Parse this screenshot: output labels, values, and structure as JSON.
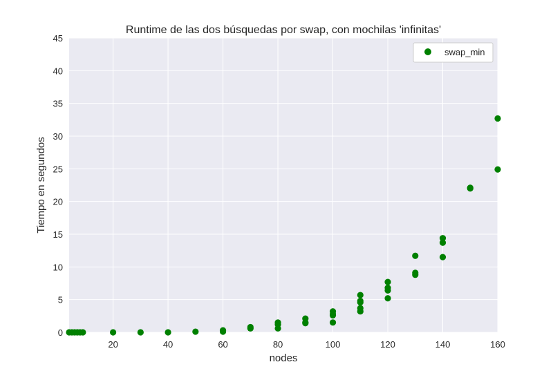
{
  "colors": {
    "plot_background": "#eaeaf2",
    "grid": "#ffffff",
    "marker": "#008000",
    "legend_background": "#ffffff"
  },
  "chart_data": {
    "type": "scatter",
    "title": "Runtime de las dos búsquedas por swap, con mochilas 'infinitas'",
    "xlabel": "nodes",
    "ylabel": "Tiempo en segundos",
    "xlim": [
      4,
      160
    ],
    "ylim": [
      0,
      45
    ],
    "xticks": [
      20,
      40,
      60,
      80,
      100,
      120,
      140,
      160
    ],
    "yticks": [
      0,
      5,
      10,
      15,
      20,
      25,
      30,
      35,
      40,
      45
    ],
    "grid": true,
    "legend_position": "top-right",
    "series": [
      {
        "name": "swap_min",
        "marker": "circle",
        "color": "#008000",
        "points": [
          [
            4,
            0.0
          ],
          [
            5,
            0.0
          ],
          [
            6,
            0.0
          ],
          [
            7,
            0.0
          ],
          [
            8,
            0.0
          ],
          [
            9,
            0.0
          ],
          [
            20,
            0.0
          ],
          [
            30,
            0.0
          ],
          [
            40,
            0.0
          ],
          [
            50,
            0.1
          ],
          [
            60,
            0.1
          ],
          [
            60,
            0.3
          ],
          [
            70,
            0.6
          ],
          [
            70,
            0.8
          ],
          [
            80,
            0.6
          ],
          [
            80,
            1.2
          ],
          [
            80,
            1.5
          ],
          [
            90,
            1.4
          ],
          [
            90,
            1.5
          ],
          [
            90,
            2.1
          ],
          [
            100,
            1.5
          ],
          [
            100,
            2.6
          ],
          [
            100,
            2.8
          ],
          [
            100,
            3.2
          ],
          [
            110,
            3.2
          ],
          [
            110,
            3.7
          ],
          [
            110,
            4.6
          ],
          [
            110,
            4.8
          ],
          [
            110,
            5.7
          ],
          [
            120,
            5.2
          ],
          [
            120,
            6.4
          ],
          [
            120,
            6.8
          ],
          [
            120,
            7.7
          ],
          [
            130,
            8.8
          ],
          [
            130,
            9.1
          ],
          [
            130,
            11.7
          ],
          [
            140,
            11.5
          ],
          [
            140,
            13.7
          ],
          [
            140,
            14.4
          ],
          [
            150,
            22.0
          ],
          [
            150,
            22.1
          ],
          [
            160,
            24.9
          ],
          [
            160,
            32.7
          ]
        ]
      }
    ]
  }
}
